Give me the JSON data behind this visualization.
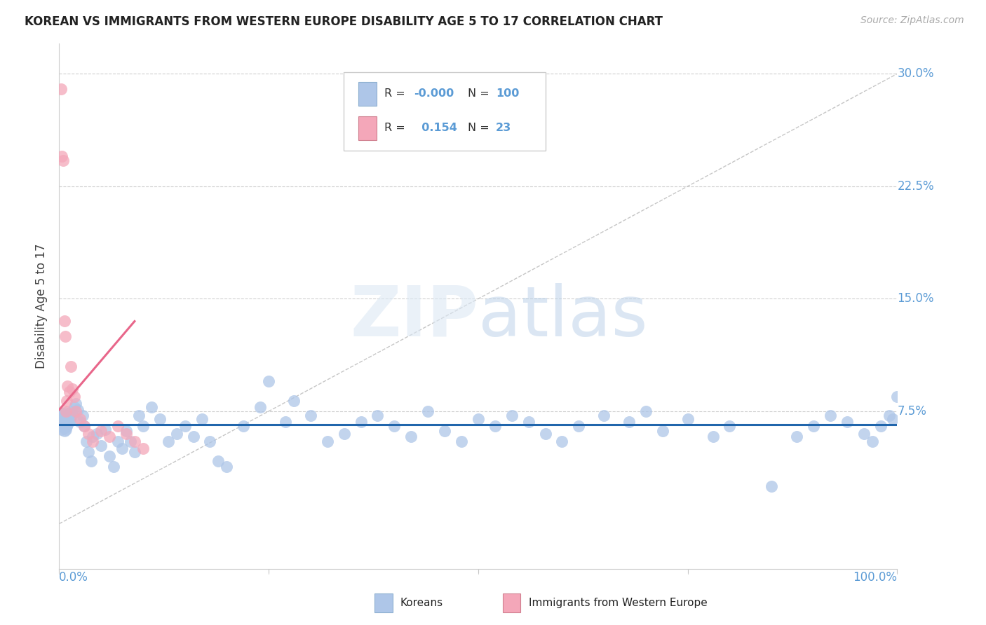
{
  "title": "KOREAN VS IMMIGRANTS FROM WESTERN EUROPE DISABILITY AGE 5 TO 17 CORRELATION CHART",
  "source": "Source: ZipAtlas.com",
  "ylabel": "Disability Age 5 to 17",
  "xlim": [
    0.0,
    1.0
  ],
  "ylim": [
    -0.03,
    0.32
  ],
  "yticks": [
    0.075,
    0.15,
    0.225,
    0.3
  ],
  "ytick_labels": [
    "7.5%",
    "15.0%",
    "22.5%",
    "30.0%"
  ],
  "korean_color": "#aec6e8",
  "western_color": "#f4a7b9",
  "korean_line_color": "#2166ac",
  "western_line_color": "#e8668a",
  "diagonal_color": "#c0c0c0",
  "background_color": "#ffffff",
  "grid_color": "#d0d0d0",
  "korean_x": [
    0.001,
    0.002,
    0.002,
    0.003,
    0.003,
    0.004,
    0.004,
    0.005,
    0.005,
    0.005,
    0.006,
    0.006,
    0.006,
    0.007,
    0.007,
    0.008,
    0.008,
    0.008,
    0.009,
    0.009,
    0.01,
    0.01,
    0.011,
    0.012,
    0.013,
    0.014,
    0.015,
    0.016,
    0.018,
    0.02,
    0.022,
    0.025,
    0.028,
    0.03,
    0.032,
    0.035,
    0.038,
    0.04,
    0.045,
    0.05,
    0.055,
    0.06,
    0.065,
    0.07,
    0.075,
    0.08,
    0.085,
    0.09,
    0.095,
    0.1,
    0.11,
    0.12,
    0.13,
    0.14,
    0.15,
    0.16,
    0.17,
    0.18,
    0.19,
    0.2,
    0.22,
    0.24,
    0.25,
    0.27,
    0.28,
    0.3,
    0.32,
    0.34,
    0.36,
    0.38,
    0.4,
    0.42,
    0.44,
    0.46,
    0.48,
    0.5,
    0.52,
    0.54,
    0.56,
    0.58,
    0.6,
    0.62,
    0.65,
    0.68,
    0.7,
    0.72,
    0.75,
    0.78,
    0.8,
    0.85,
    0.88,
    0.9,
    0.92,
    0.94,
    0.96,
    0.97,
    0.98,
    0.99,
    0.995,
    1.0
  ],
  "korean_y": [
    0.068,
    0.072,
    0.065,
    0.063,
    0.069,
    0.067,
    0.071,
    0.066,
    0.069,
    0.073,
    0.062,
    0.067,
    0.071,
    0.064,
    0.074,
    0.063,
    0.069,
    0.072,
    0.065,
    0.068,
    0.066,
    0.07,
    0.068,
    0.072,
    0.069,
    0.071,
    0.075,
    0.073,
    0.078,
    0.08,
    0.076,
    0.068,
    0.072,
    0.065,
    0.055,
    0.048,
    0.042,
    0.058,
    0.06,
    0.052,
    0.063,
    0.045,
    0.038,
    0.055,
    0.05,
    0.062,
    0.055,
    0.048,
    0.072,
    0.065,
    0.078,
    0.07,
    0.055,
    0.06,
    0.065,
    0.058,
    0.07,
    0.055,
    0.042,
    0.038,
    0.065,
    0.078,
    0.095,
    0.068,
    0.082,
    0.072,
    0.055,
    0.06,
    0.068,
    0.072,
    0.065,
    0.058,
    0.075,
    0.062,
    0.055,
    0.07,
    0.065,
    0.072,
    0.068,
    0.06,
    0.055,
    0.065,
    0.072,
    0.068,
    0.075,
    0.062,
    0.07,
    0.058,
    0.065,
    0.025,
    0.058,
    0.065,
    0.072,
    0.068,
    0.06,
    0.055,
    0.065,
    0.072,
    0.07,
    0.085
  ],
  "western_x": [
    0.002,
    0.003,
    0.005,
    0.006,
    0.007,
    0.008,
    0.009,
    0.01,
    0.012,
    0.014,
    0.016,
    0.018,
    0.02,
    0.025,
    0.03,
    0.035,
    0.04,
    0.05,
    0.06,
    0.07,
    0.08,
    0.09,
    0.1
  ],
  "western_y": [
    0.29,
    0.245,
    0.242,
    0.135,
    0.125,
    0.075,
    0.082,
    0.092,
    0.088,
    0.105,
    0.09,
    0.085,
    0.075,
    0.07,
    0.065,
    0.06,
    0.055,
    0.062,
    0.058,
    0.065,
    0.06,
    0.055,
    0.05
  ],
  "korean_line_y0": 0.066,
  "korean_line_y1": 0.066,
  "western_line_x0": 0.0,
  "western_line_x1": 0.09,
  "western_line_y0": 0.076,
  "western_line_y1": 0.135
}
